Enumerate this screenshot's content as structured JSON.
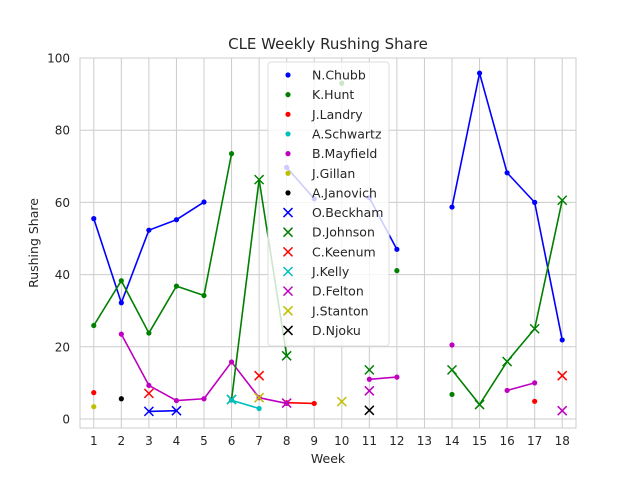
{
  "chart_data": {
    "type": "line",
    "title": "CLE Weekly Rushing Share",
    "xlabel": "Week",
    "ylabel": "Rushing Share",
    "xlim": [
      0.5,
      18.5
    ],
    "ylim": [
      -2.5,
      100
    ],
    "x_ticks": [
      "1",
      "2",
      "3",
      "4",
      "5",
      "6",
      "7",
      "8",
      "9",
      "10",
      "11",
      "12",
      "13",
      "14",
      "15",
      "16",
      "17",
      "18"
    ],
    "y_ticks": [
      "0",
      "20",
      "40",
      "60",
      "80",
      "100"
    ],
    "grid": true,
    "legend_position": "upper-center",
    "series": [
      {
        "name": "N.Chubb",
        "color": "#0000ff",
        "marker": "dot",
        "points": [
          [
            1,
            55.5
          ],
          [
            2,
            32.2
          ],
          [
            3,
            52.3
          ],
          [
            4,
            55.2
          ],
          [
            5,
            60.1
          ],
          [
            8,
            69.7
          ],
          [
            9,
            61.0
          ],
          [
            11,
            61.3
          ],
          [
            12,
            47.0
          ],
          [
            14,
            58.7
          ],
          [
            15,
            95.8
          ],
          [
            16,
            68.2
          ],
          [
            17,
            60.0
          ],
          [
            18,
            21.9
          ]
        ]
      },
      {
        "name": "K.Hunt",
        "color": "#008000",
        "marker": "dot",
        "points": [
          [
            1,
            25.9
          ],
          [
            2,
            38.3
          ],
          [
            3,
            23.8
          ],
          [
            4,
            36.8
          ],
          [
            5,
            34.2
          ],
          [
            6,
            73.5
          ],
          [
            10,
            93.0
          ],
          [
            12,
            41.1
          ],
          [
            14,
            6.8
          ]
        ]
      },
      {
        "name": "J.Landry",
        "color": "#ff0000",
        "marker": "dot",
        "points": [
          [
            1,
            7.3
          ],
          [
            8,
            4.5
          ],
          [
            9,
            4.3
          ],
          [
            17,
            4.9
          ]
        ]
      },
      {
        "name": "A.Schwartz",
        "color": "#00bfbf",
        "marker": "dot",
        "points": [
          [
            6,
            5.2
          ],
          [
            7,
            2.9
          ]
        ]
      },
      {
        "name": "B.Mayfield",
        "color": "#bf00bf",
        "marker": "dot",
        "points": [
          [
            2,
            23.5
          ],
          [
            3,
            9.3
          ],
          [
            4,
            5.1
          ],
          [
            5,
            5.6
          ],
          [
            6,
            15.8
          ],
          [
            7,
            5.9
          ],
          [
            8,
            4.3
          ],
          [
            11,
            11.0
          ],
          [
            12,
            11.6
          ],
          [
            14,
            20.5
          ],
          [
            16,
            7.9
          ],
          [
            17,
            10.0
          ]
        ]
      },
      {
        "name": "J.Gillan",
        "color": "#bfbf00",
        "marker": "dot",
        "points": [
          [
            1,
            3.4
          ]
        ]
      },
      {
        "name": "A.Janovich",
        "color": "#000000",
        "marker": "dot",
        "points": [
          [
            2,
            5.6
          ]
        ]
      },
      {
        "name": "O.Beckham",
        "color": "#0000ff",
        "marker": "x",
        "points": [
          [
            3,
            2.1
          ],
          [
            4,
            2.3
          ]
        ]
      },
      {
        "name": "D.Johnson",
        "color": "#008000",
        "marker": "x",
        "points": [
          [
            6,
            5.4
          ],
          [
            7,
            66.3
          ],
          [
            8,
            17.5
          ],
          [
            11,
            13.6
          ],
          [
            14,
            13.6
          ],
          [
            15,
            4.0
          ],
          [
            16,
            15.9
          ],
          [
            17,
            25.0
          ],
          [
            18,
            60.6
          ]
        ]
      },
      {
        "name": "C.Keenum",
        "color": "#ff0000",
        "marker": "x",
        "points": [
          [
            3,
            7.1
          ],
          [
            7,
            12.0
          ],
          [
            18,
            12.0
          ]
        ]
      },
      {
        "name": "J.Kelly",
        "color": "#00bfbf",
        "marker": "x",
        "points": [
          [
            6,
            5.4
          ]
        ]
      },
      {
        "name": "D.Felton",
        "color": "#bf00bf",
        "marker": "x",
        "points": [
          [
            8,
            4.4
          ],
          [
            11,
            7.8
          ],
          [
            18,
            2.3
          ]
        ]
      },
      {
        "name": "J.Stanton",
        "color": "#bfbf00",
        "marker": "x",
        "points": [
          [
            7,
            5.9
          ],
          [
            10,
            4.8
          ]
        ]
      },
      {
        "name": "D.Njoku",
        "color": "#000000",
        "marker": "x",
        "points": [
          [
            11,
            2.4
          ]
        ]
      }
    ]
  }
}
